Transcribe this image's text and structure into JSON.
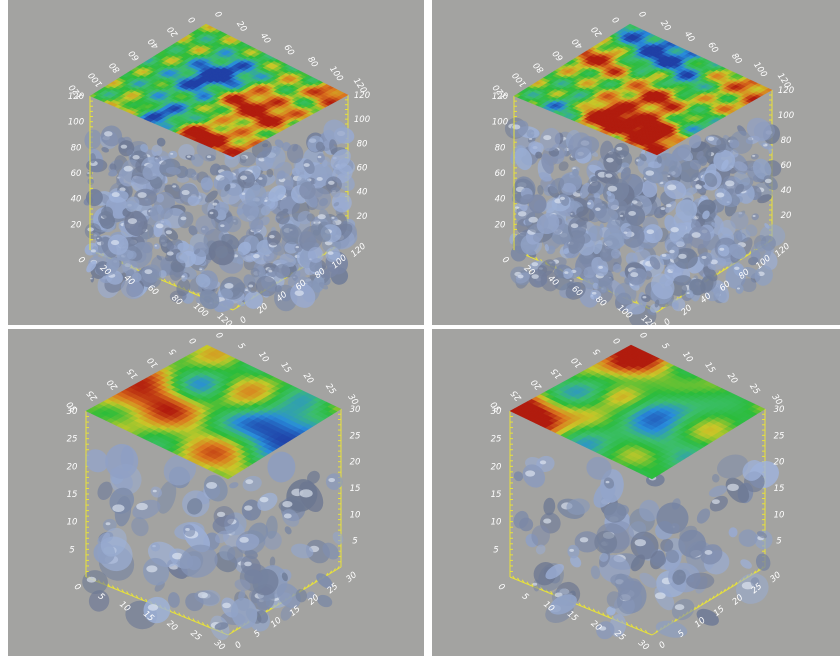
{
  "panels": [
    {
      "id": "top-left",
      "ticks_x": [
        "0",
        "20",
        "40",
        "60",
        "80",
        "100",
        "120"
      ],
      "ticks_y": [
        "0",
        "20",
        "40",
        "60",
        "80",
        "100",
        "120"
      ],
      "ticks_z": [
        "20",
        "40",
        "60",
        "80",
        "100",
        "120"
      ],
      "resolution": "high"
    },
    {
      "id": "top-right",
      "ticks_x": [
        "0",
        "20",
        "40",
        "60",
        "80",
        "100",
        "120"
      ],
      "ticks_y": [
        "0",
        "20",
        "40",
        "60",
        "80",
        "100",
        "120"
      ],
      "ticks_z": [
        "20",
        "40",
        "60",
        "80",
        "100",
        "120"
      ],
      "resolution": "high"
    },
    {
      "id": "bottom-left",
      "ticks_x": [
        "0",
        "5",
        "10",
        "15",
        "20",
        "25",
        "30"
      ],
      "ticks_y": [
        "0",
        "5",
        "10",
        "15",
        "20",
        "25",
        "30"
      ],
      "ticks_z": [
        "5",
        "10",
        "15",
        "20",
        "25",
        "30"
      ],
      "resolution": "low"
    },
    {
      "id": "bottom-right",
      "ticks_x": [
        "0",
        "5",
        "10",
        "15",
        "20",
        "25",
        "30"
      ],
      "ticks_y": [
        "0",
        "5",
        "10",
        "15",
        "20",
        "25",
        "30"
      ],
      "ticks_z": [
        "5",
        "10",
        "15",
        "20",
        "25",
        "30"
      ],
      "resolution": "low"
    }
  ],
  "colors": {
    "background": "#a3a3a1",
    "axis": "#e8e23a",
    "isosurface": "#8ea2c4",
    "field_low": "#1f3fa6",
    "field_mid": "#2bbd3a",
    "field_high": "#b11a0d"
  }
}
